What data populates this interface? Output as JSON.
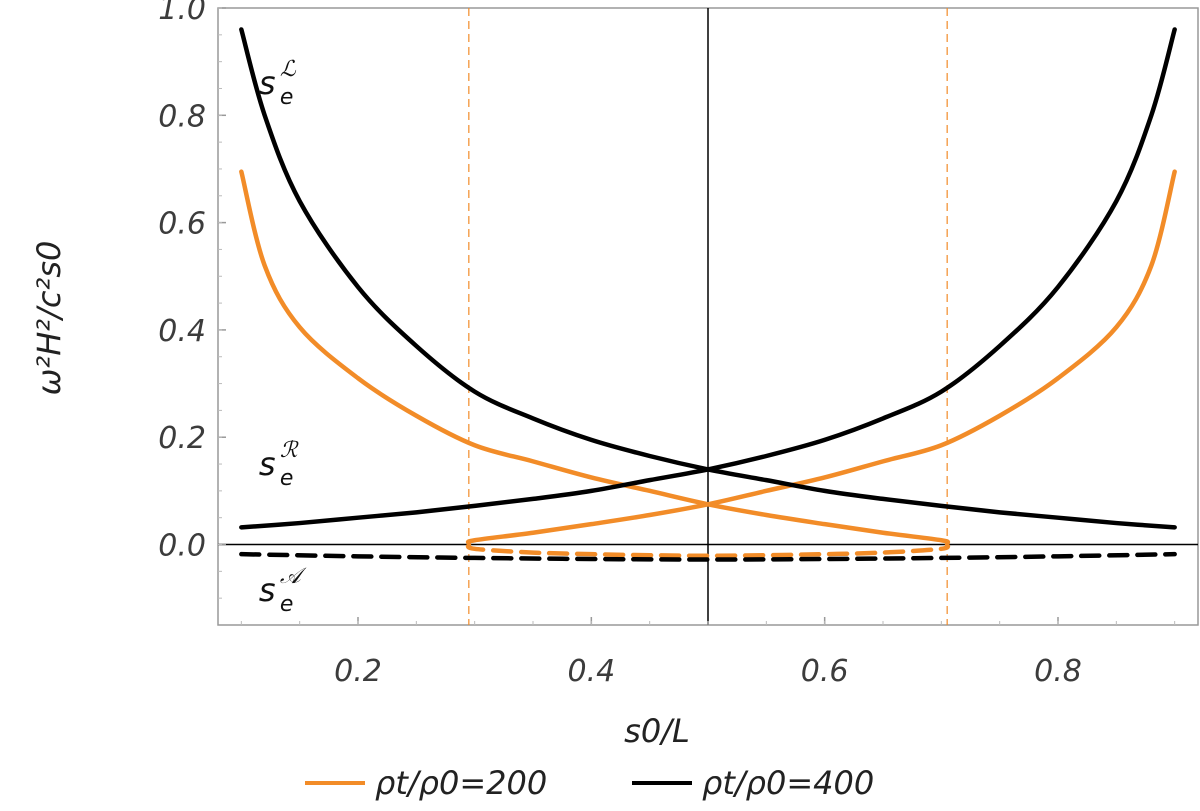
{
  "chart_data": {
    "type": "line",
    "title": "",
    "xlabel": "s0/L",
    "ylabel": "ω²H²/c²s0",
    "xlim": [
      0.08,
      0.92
    ],
    "ylim": [
      -0.15,
      1.0
    ],
    "xticks": [
      0.2,
      0.4,
      0.6,
      0.8
    ],
    "yticks": [
      0.0,
      0.2,
      0.4,
      0.6,
      0.8,
      1.0
    ],
    "xtick_labels": [
      "0.2",
      "0.4",
      "0.6",
      "0.8"
    ],
    "ytick_labels": [
      "0.0",
      "0.2",
      "0.4",
      "0.6",
      "0.8",
      "1.0"
    ],
    "vertical_lines": [
      {
        "x": 0.5,
        "style": "solid",
        "color": "#000000"
      },
      {
        "x": 0.295,
        "style": "dashed",
        "color": "#f28c28"
      },
      {
        "x": 0.705,
        "style": "dashed",
        "color": "#f28c28"
      }
    ],
    "series": [
      {
        "name": "rho200_L",
        "color": "#f28c28",
        "dash": false,
        "x": [
          0.1,
          0.12,
          0.15,
          0.2,
          0.25,
          0.3,
          0.35,
          0.4,
          0.45,
          0.5,
          0.55,
          0.6,
          0.65,
          0.7,
          0.705
        ],
        "y": [
          0.695,
          0.52,
          0.405,
          0.31,
          0.24,
          0.185,
          0.155,
          0.125,
          0.1,
          0.075,
          0.055,
          0.038,
          0.022,
          0.008,
          0.003
        ]
      },
      {
        "name": "rho200_R",
        "color": "#f28c28",
        "dash": false,
        "x": [
          0.295,
          0.3,
          0.35,
          0.4,
          0.45,
          0.5,
          0.55,
          0.6,
          0.65,
          0.7,
          0.75,
          0.8,
          0.85,
          0.88,
          0.9
        ],
        "y": [
          0.003,
          0.008,
          0.022,
          0.038,
          0.055,
          0.075,
          0.1,
          0.125,
          0.155,
          0.185,
          0.24,
          0.31,
          0.405,
          0.52,
          0.695
        ]
      },
      {
        "name": "rho200_A",
        "color": "#f28c28",
        "dash": true,
        "x": [
          0.295,
          0.3,
          0.35,
          0.4,
          0.45,
          0.5,
          0.55,
          0.6,
          0.65,
          0.7,
          0.705
        ],
        "y": [
          0.0,
          -0.008,
          -0.015,
          -0.018,
          -0.02,
          -0.021,
          -0.02,
          -0.018,
          -0.015,
          -0.008,
          0.0
        ]
      },
      {
        "name": "rho400_L",
        "color": "#000000",
        "dash": false,
        "x": [
          0.1,
          0.12,
          0.15,
          0.2,
          0.25,
          0.3,
          0.35,
          0.4,
          0.45,
          0.5,
          0.55,
          0.6,
          0.65,
          0.7,
          0.75,
          0.8,
          0.85,
          0.9
        ],
        "y": [
          0.96,
          0.8,
          0.64,
          0.48,
          0.37,
          0.285,
          0.235,
          0.195,
          0.165,
          0.14,
          0.12,
          0.1,
          0.085,
          0.072,
          0.06,
          0.05,
          0.04,
          0.032
        ]
      },
      {
        "name": "rho400_R",
        "color": "#000000",
        "dash": false,
        "x": [
          0.1,
          0.15,
          0.2,
          0.25,
          0.3,
          0.35,
          0.4,
          0.45,
          0.5,
          0.55,
          0.6,
          0.65,
          0.7,
          0.75,
          0.8,
          0.85,
          0.88,
          0.9
        ],
        "y": [
          0.032,
          0.04,
          0.05,
          0.06,
          0.072,
          0.085,
          0.1,
          0.12,
          0.14,
          0.165,
          0.195,
          0.235,
          0.285,
          0.37,
          0.48,
          0.64,
          0.8,
          0.96
        ]
      },
      {
        "name": "rho400_A",
        "color": "#000000",
        "dash": true,
        "x": [
          0.1,
          0.2,
          0.3,
          0.4,
          0.5,
          0.6,
          0.7,
          0.8,
          0.9
        ],
        "y": [
          -0.018,
          -0.022,
          -0.025,
          -0.027,
          -0.028,
          -0.027,
          -0.025,
          -0.022,
          -0.018
        ]
      }
    ],
    "annotations": [
      {
        "text": "s",
        "sub": "e",
        "sup": "ℒ",
        "x": 0.115,
        "y": 0.84
      },
      {
        "text": "s",
        "sub": "e",
        "sup": "ℛ",
        "x": 0.115,
        "y": 0.13
      },
      {
        "text": "s",
        "sub": "e",
        "sup": "𝒜",
        "x": 0.115,
        "y": -0.105
      }
    ],
    "legend": {
      "placement": "bottom",
      "entries": [
        {
          "label": "ρt/ρ0=200",
          "color": "#f28c28"
        },
        {
          "label": "ρt/ρ0=400",
          "color": "#000000"
        }
      ]
    }
  }
}
